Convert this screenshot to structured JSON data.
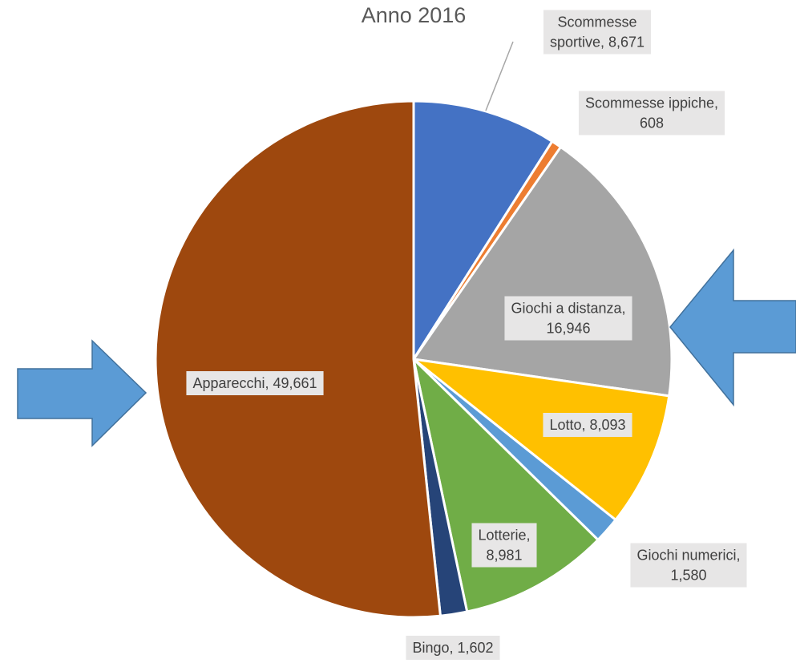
{
  "chart_data": {
    "type": "pie",
    "title": "Anno 2016",
    "categories": [
      "Scommesse sportive",
      "Scommesse ippiche",
      "Giochi a distanza",
      "Lotto",
      "Giochi numerici",
      "Lotterie",
      "Bingo",
      "Apparecchi"
    ],
    "values": [
      8671,
      608,
      16946,
      8093,
      1580,
      8981,
      1602,
      49661
    ],
    "value_labels": [
      "Scommesse sportive, 8,671",
      "Scommesse ippiche, 608",
      "Giochi a distanza, 16,946",
      "Lotto, 8,093",
      "Giochi numerici, 1,580",
      "Lotterie, 8,981",
      "Bingo, 1,602",
      "Apparecchi, 49,661"
    ],
    "colors": [
      "#4472c4",
      "#ed7d31",
      "#a5a5a5",
      "#ffc000",
      "#5b9bd5",
      "#70ad47",
      "#264478",
      "#9e480e"
    ]
  }
}
